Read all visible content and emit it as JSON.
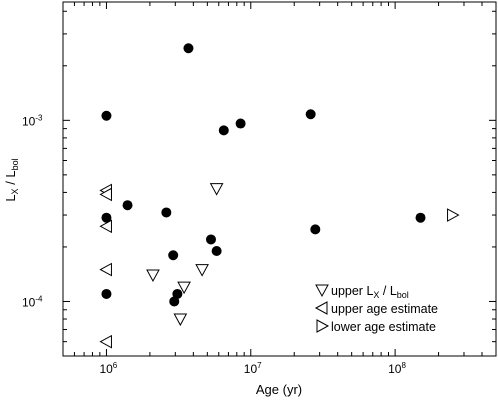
{
  "chart_data": {
    "type": "scatter",
    "title": "",
    "xlabel": "Age (yr)",
    "ylabel": {
      "main": "L",
      "sub1": "X",
      "sep": " / L",
      "sub2": "bol"
    },
    "xscale": "log",
    "yscale": "log",
    "xlim": [
      500000,
      500000000
    ],
    "ylim": [
      5e-05,
      0.0045
    ],
    "x_ticks": [
      {
        "value": 1000000,
        "base": "10",
        "exp": "6"
      },
      {
        "value": 10000000,
        "base": "10",
        "exp": "7"
      },
      {
        "value": 100000000,
        "base": "10",
        "exp": "8"
      }
    ],
    "y_ticks": [
      {
        "value": 0.0001,
        "base": "10",
        "exp": "-4"
      },
      {
        "value": 0.001,
        "base": "10",
        "exp": "-3"
      }
    ],
    "grid": false,
    "legend_position": "bottom-right",
    "legend": [
      {
        "marker": "triangle-down",
        "text": "upper L",
        "sub1": "X",
        "sep": " / L",
        "sub2": "bol"
      },
      {
        "marker": "triangle-left",
        "text": "upper age estimate"
      },
      {
        "marker": "triangle-right",
        "text": "lower age estimate"
      }
    ],
    "series": [
      {
        "marker": "filled-circle",
        "points": [
          {
            "x": 3700000,
            "y": 0.0025
          },
          {
            "x": 1000000,
            "y": 0.00106
          },
          {
            "x": 26000000,
            "y": 0.00108
          },
          {
            "x": 8500000,
            "y": 0.00096
          },
          {
            "x": 6500000,
            "y": 0.00088
          },
          {
            "x": 1400000,
            "y": 0.00034
          },
          {
            "x": 1000000,
            "y": 0.00029
          },
          {
            "x": 2600000,
            "y": 0.00031
          },
          {
            "x": 150000000,
            "y": 0.00029
          },
          {
            "x": 28000000,
            "y": 0.00025
          },
          {
            "x": 5300000,
            "y": 0.00022
          },
          {
            "x": 5800000,
            "y": 0.00019
          },
          {
            "x": 2900000,
            "y": 0.00018
          },
          {
            "x": 1000000,
            "y": 0.00011
          },
          {
            "x": 3100000,
            "y": 0.00011
          },
          {
            "x": 2950000,
            "y": 0.0001
          }
        ]
      },
      {
        "marker": "triangle-down",
        "points": [
          {
            "x": 5800000,
            "y": 0.00042
          },
          {
            "x": 2100000,
            "y": 0.00014
          },
          {
            "x": 4600000,
            "y": 0.00015
          },
          {
            "x": 3450000,
            "y": 0.00012
          },
          {
            "x": 3250000,
            "y": 8e-05
          }
        ]
      },
      {
        "marker": "triangle-left",
        "points": [
          {
            "x": 1000000,
            "y": 0.00041
          },
          {
            "x": 1000000,
            "y": 0.00039
          },
          {
            "x": 1000000,
            "y": 0.00026
          },
          {
            "x": 1000000,
            "y": 0.00015
          },
          {
            "x": 1000000,
            "y": 6e-05
          }
        ]
      },
      {
        "marker": "triangle-right",
        "points": [
          {
            "x": 250000000,
            "y": 0.0003
          }
        ]
      }
    ]
  }
}
